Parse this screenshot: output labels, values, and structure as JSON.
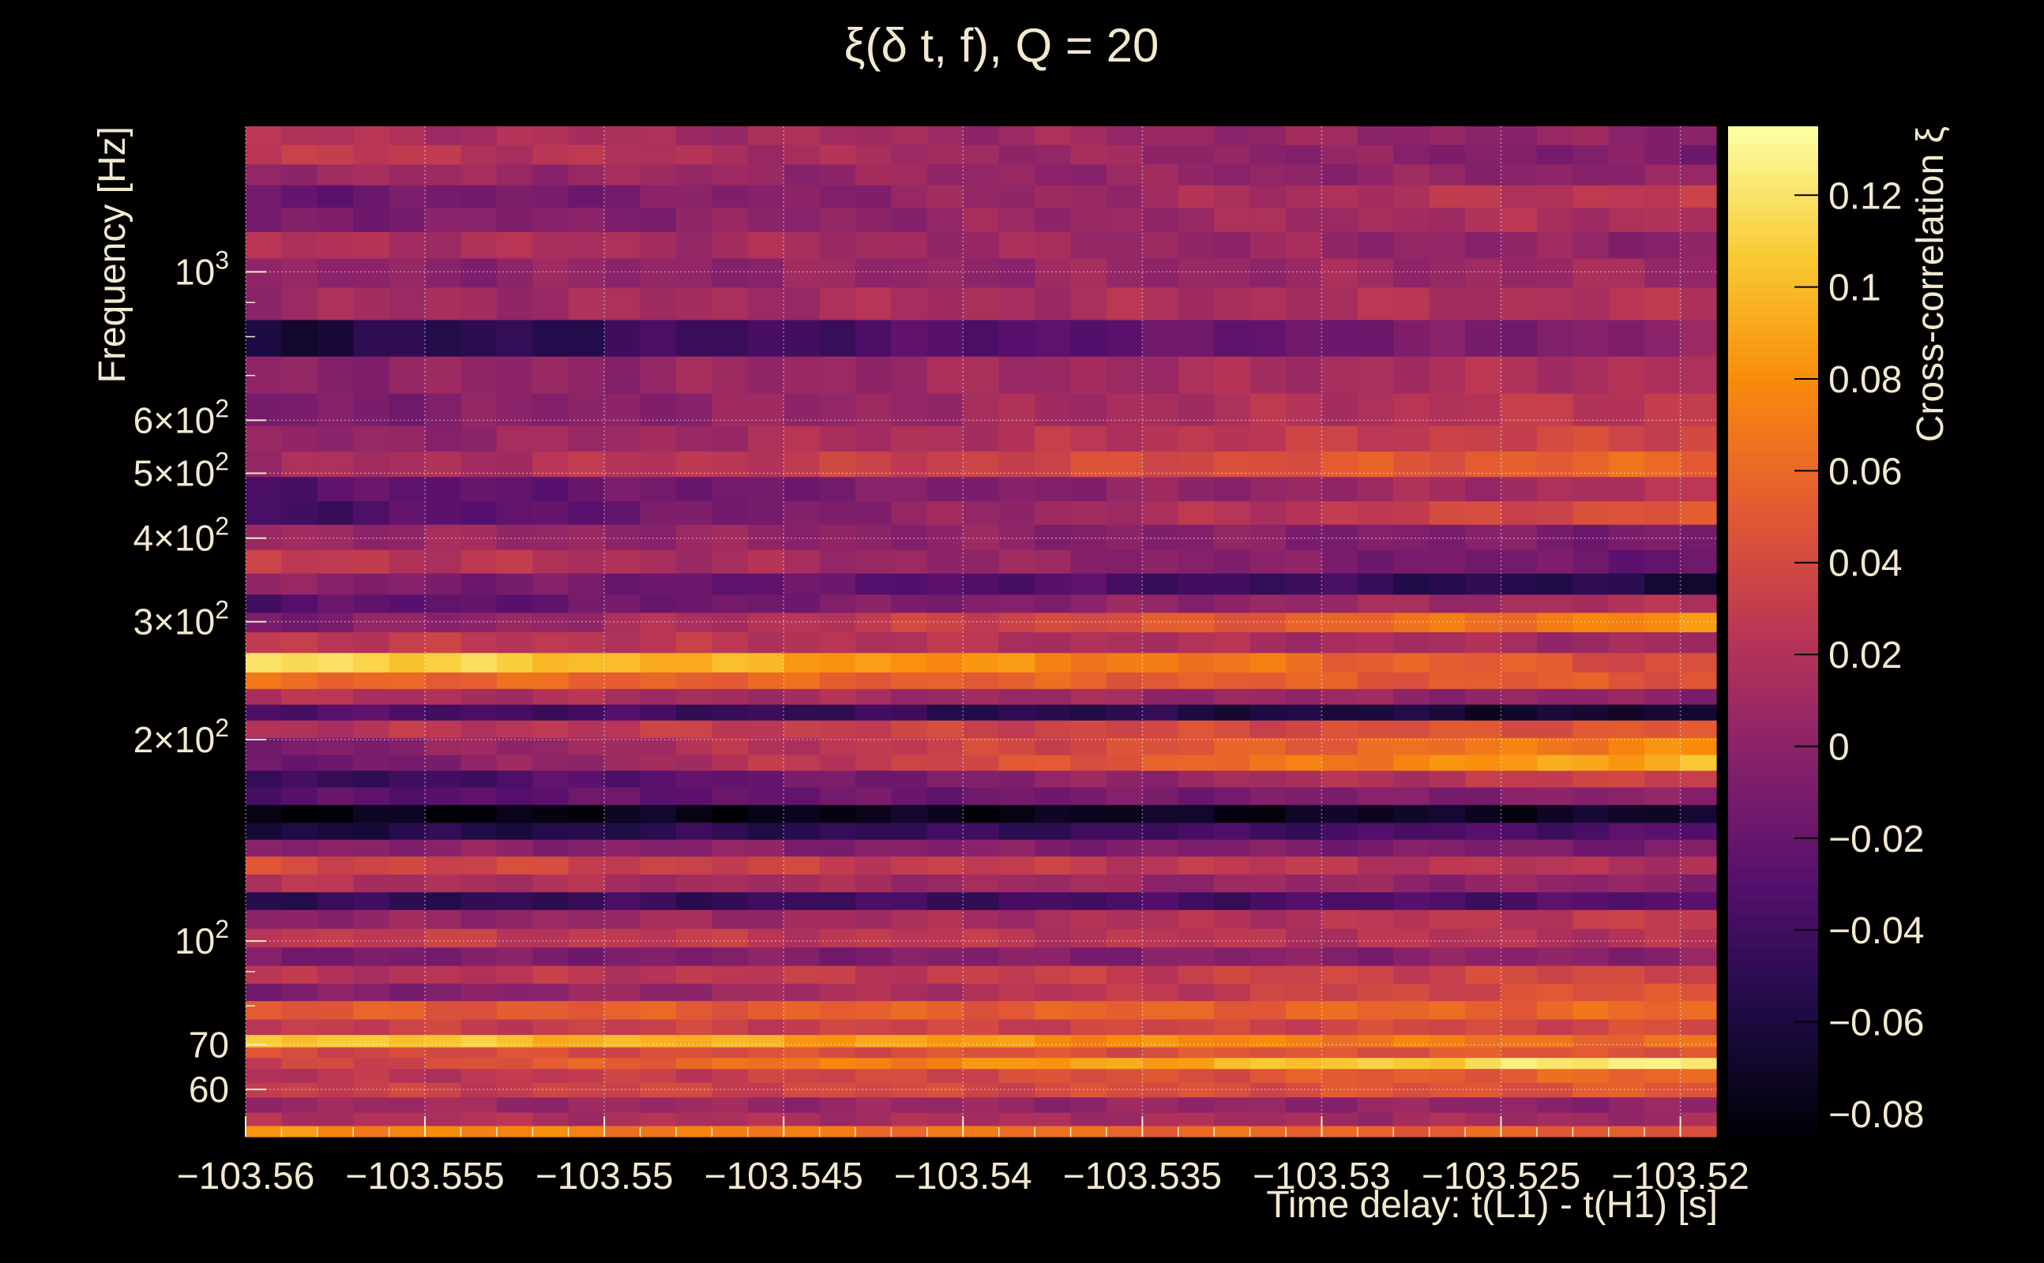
{
  "chart_data": {
    "type": "heatmap",
    "title": "ξ(δ t, f), Q = 20",
    "xlabel": "Time delay: t(L1) - t(H1) [s]",
    "ylabel": "Frequency [Hz]",
    "colorbar_label": "Cross-correlation ξ",
    "x_range": [
      -103.56,
      -103.519
    ],
    "y_range_hz": [
      51,
      1650
    ],
    "y_scale": "log",
    "color_range": [
      -0.085,
      0.135
    ],
    "grid": true,
    "colormap": "inferno",
    "x_ticks": [
      {
        "value": -103.56,
        "label": "−103.56"
      },
      {
        "value": -103.555,
        "label": "−103.555"
      },
      {
        "value": -103.55,
        "label": "−103.55"
      },
      {
        "value": -103.545,
        "label": "−103.545"
      },
      {
        "value": -103.54,
        "label": "−103.54"
      },
      {
        "value": -103.535,
        "label": "−103.535"
      },
      {
        "value": -103.53,
        "label": "−103.53"
      },
      {
        "value": -103.525,
        "label": "−103.525"
      },
      {
        "value": -103.52,
        "label": "−103.52"
      }
    ],
    "y_ticks": [
      {
        "value": 60,
        "base": "60",
        "exp": ""
      },
      {
        "value": 70,
        "base": "70",
        "exp": ""
      },
      {
        "value": 100,
        "base": "10",
        "exp": "2"
      },
      {
        "value": 200,
        "base": "2×10",
        "exp": "2"
      },
      {
        "value": 300,
        "base": "3×10",
        "exp": "2"
      },
      {
        "value": 400,
        "base": "4×10",
        "exp": "2"
      },
      {
        "value": 500,
        "base": "5×10",
        "exp": "2"
      },
      {
        "value": 600,
        "base": "6×10",
        "exp": "2"
      },
      {
        "value": 1000,
        "base": "10",
        "exp": "3"
      }
    ],
    "y_minor_ticks": [
      80,
      90,
      700,
      800,
      900
    ],
    "colorbar_ticks": [
      {
        "value": 0.12,
        "label": "0.12"
      },
      {
        "value": 0.1,
        "label": "0.1"
      },
      {
        "value": 0.08,
        "label": "0.08"
      },
      {
        "value": 0.06,
        "label": "0.06"
      },
      {
        "value": 0.04,
        "label": "0.04"
      },
      {
        "value": 0.02,
        "label": "0.02"
      },
      {
        "value": 0,
        "label": "0"
      },
      {
        "value": -0.02,
        "label": "−0.02"
      },
      {
        "value": -0.04,
        "label": "−0.04"
      },
      {
        "value": -0.06,
        "label": "−0.06"
      },
      {
        "value": -0.08,
        "label": "−0.08"
      }
    ],
    "frequency_bands": [
      {
        "f": 1600,
        "start": 0.02,
        "end": 0.0
      },
      {
        "f": 1500,
        "start": 0.03,
        "end": -0.01
      },
      {
        "f": 1400,
        "start": 0.01,
        "end": 0.0
      },
      {
        "f": 1300,
        "start": -0.02,
        "end": 0.03
      },
      {
        "f": 1200,
        "start": -0.01,
        "end": 0.02
      },
      {
        "f": 1100,
        "start": 0.02,
        "end": 0.0
      },
      {
        "f": 1000,
        "start": 0.0,
        "end": 0.01
      },
      {
        "f": 900,
        "start": 0.01,
        "end": 0.02
      },
      {
        "f": 800,
        "start": -0.06,
        "end": 0.0
      },
      {
        "f": 700,
        "start": 0.0,
        "end": 0.02
      },
      {
        "f": 620,
        "start": -0.01,
        "end": 0.03
      },
      {
        "f": 560,
        "start": 0.0,
        "end": 0.04
      },
      {
        "f": 520,
        "start": 0.01,
        "end": 0.06
      },
      {
        "f": 470,
        "start": -0.03,
        "end": 0.02
      },
      {
        "f": 440,
        "start": -0.04,
        "end": 0.05
      },
      {
        "f": 400,
        "start": 0.01,
        "end": -0.01
      },
      {
        "f": 370,
        "start": 0.03,
        "end": -0.02
      },
      {
        "f": 340,
        "start": 0.0,
        "end": -0.06
      },
      {
        "f": 320,
        "start": -0.03,
        "end": 0.02
      },
      {
        "f": 300,
        "start": -0.01,
        "end": 0.08
      },
      {
        "f": 280,
        "start": 0.03,
        "end": 0.01
      },
      {
        "f": 260,
        "start": 0.12,
        "end": 0.04
      },
      {
        "f": 245,
        "start": 0.06,
        "end": 0.05
      },
      {
        "f": 232,
        "start": 0.02,
        "end": 0.0
      },
      {
        "f": 220,
        "start": -0.03,
        "end": -0.07
      },
      {
        "f": 208,
        "start": 0.02,
        "end": 0.05
      },
      {
        "f": 195,
        "start": -0.01,
        "end": 0.08
      },
      {
        "f": 185,
        "start": -0.02,
        "end": 0.1
      },
      {
        "f": 175,
        "start": -0.05,
        "end": 0.04
      },
      {
        "f": 165,
        "start": -0.03,
        "end": 0.0
      },
      {
        "f": 155,
        "start": -0.08,
        "end": -0.07
      },
      {
        "f": 146,
        "start": -0.06,
        "end": -0.03
      },
      {
        "f": 138,
        "start": 0.0,
        "end": -0.01
      },
      {
        "f": 130,
        "start": 0.04,
        "end": 0.02
      },
      {
        "f": 122,
        "start": 0.02,
        "end": 0.0
      },
      {
        "f": 115,
        "start": -0.05,
        "end": -0.03
      },
      {
        "f": 108,
        "start": 0.0,
        "end": 0.03
      },
      {
        "f": 101,
        "start": 0.03,
        "end": 0.02
      },
      {
        "f": 95,
        "start": -0.01,
        "end": 0.0
      },
      {
        "f": 89,
        "start": 0.02,
        "end": 0.04
      },
      {
        "f": 84,
        "start": -0.01,
        "end": 0.05
      },
      {
        "f": 79,
        "start": 0.05,
        "end": 0.06
      },
      {
        "f": 74,
        "start": 0.03,
        "end": 0.04
      },
      {
        "f": 71,
        "start": 0.11,
        "end": 0.06
      },
      {
        "f": 68,
        "start": 0.04,
        "end": 0.05
      },
      {
        "f": 66,
        "start": 0.03,
        "end": 0.13
      },
      {
        "f": 63,
        "start": 0.02,
        "end": 0.06
      },
      {
        "f": 60,
        "start": 0.03,
        "end": 0.05
      },
      {
        "f": 57,
        "start": 0.01,
        "end": 0.0
      },
      {
        "f": 54,
        "start": 0.02,
        "end": 0.01
      },
      {
        "f": 52,
        "start": 0.08,
        "end": 0.05
      }
    ],
    "n_time_bins": 41
  }
}
